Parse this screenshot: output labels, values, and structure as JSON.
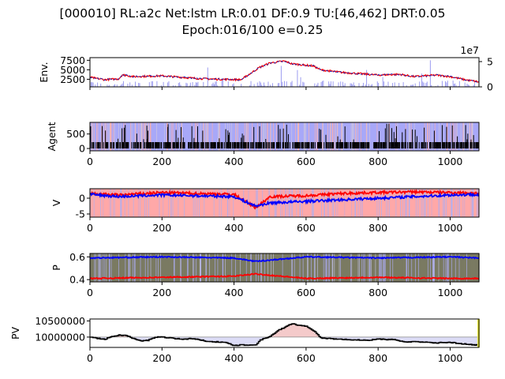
{
  "title_line1": "[000010] RL:a2c Net:lstm LR:0.01 DF:0.9 TU:[46,462] DRT:0.05",
  "title_line2": "Epoch:016/100 e=0.25",
  "chart_data": [
    {
      "type": "line",
      "ylabel": "Env.",
      "xlim": [
        0,
        1080
      ],
      "ylim": [
        500,
        8200
      ],
      "yticks": [
        2500,
        5000,
        7500
      ],
      "y2ticks": [
        "0",
        "5"
      ],
      "y2_offset": "1e7",
      "series": [
        {
          "color": "#ff0000",
          "x": [
            0,
            40,
            80,
            90,
            120,
            200,
            300,
            360,
            420,
            470,
            500,
            540,
            560,
            620,
            640,
            700,
            760,
            800,
            860,
            900,
            960,
            1000,
            1040,
            1080
          ],
          "values": [
            3000,
            2400,
            2600,
            3700,
            3200,
            3400,
            2700,
            2500,
            2400,
            5600,
            6800,
            7300,
            6600,
            6000,
            5000,
            4300,
            3900,
            3600,
            3800,
            3200,
            3600,
            3200,
            2400,
            1800
          ]
        }
      ]
    },
    {
      "type": "bar",
      "ylabel": "Agent",
      "xlim": [
        0,
        1080
      ],
      "ylim": [
        -80,
        900
      ],
      "yticks": [
        0,
        500
      ],
      "xticks": [
        0,
        200,
        400,
        600,
        800,
        1000
      ]
    },
    {
      "type": "line",
      "ylabel": "V",
      "xlim": [
        0,
        1080
      ],
      "ylim": [
        -6,
        3
      ],
      "yticks": [
        0,
        -5
      ],
      "xticks": [
        0,
        200,
        400,
        600,
        800,
        1000
      ],
      "series": [
        {
          "color": "#ff0000",
          "x": [
            0,
            80,
            200,
            400,
            460,
            500,
            600,
            700,
            800,
            900,
            1000,
            1080
          ],
          "values": [
            1.5,
            1.0,
            1.8,
            1.2,
            -3.0,
            0.5,
            0.8,
            1.5,
            1.8,
            2.0,
            1.8,
            1.6
          ]
        },
        {
          "color": "#0000ff",
          "x": [
            0,
            80,
            200,
            400,
            460,
            500,
            600,
            700,
            800,
            900,
            1000,
            1080
          ],
          "values": [
            1.2,
            0.5,
            1.0,
            0.5,
            -2.5,
            -1.5,
            -1.0,
            -0.5,
            0.0,
            0.5,
            1.0,
            1.2
          ]
        }
      ]
    },
    {
      "type": "line",
      "ylabel": "P",
      "xlim": [
        0,
        1080
      ],
      "ylim": [
        0.38,
        0.63
      ],
      "yticks": [
        0.6,
        0.4
      ],
      "xticks": [
        0,
        200,
        400,
        600,
        800,
        1000
      ],
      "series": [
        {
          "color": "#0000ff",
          "x": [
            0,
            200,
            400,
            460,
            600,
            800,
            1000,
            1080
          ],
          "values": [
            0.59,
            0.6,
            0.59,
            0.56,
            0.6,
            0.59,
            0.6,
            0.59
          ]
        },
        {
          "color": "#ff0000",
          "x": [
            0,
            200,
            400,
            460,
            600,
            800,
            1000,
            1080
          ],
          "values": [
            0.41,
            0.42,
            0.43,
            0.45,
            0.41,
            0.42,
            0.41,
            0.41
          ]
        }
      ]
    },
    {
      "type": "line",
      "ylabel": "PV",
      "xlim": [
        0,
        1080
      ],
      "ylim": [
        9680000,
        10560000
      ],
      "yticks": [
        10000000,
        10500000
      ],
      "baseline": 10000000,
      "xticks": [
        0,
        200,
        400,
        600,
        800,
        1000
      ],
      "series": [
        {
          "color": "#000000",
          "x": [
            0,
            20,
            40,
            60,
            80,
            100,
            120,
            140,
            160,
            180,
            200,
            220,
            240,
            260,
            280,
            300,
            320,
            340,
            360,
            380,
            400,
            420,
            440,
            460,
            470,
            480,
            500,
            520,
            540,
            560,
            580,
            600,
            620,
            640,
            660,
            680,
            700,
            720,
            740,
            760,
            780,
            800,
            820,
            840,
            860,
            880,
            900,
            920,
            940,
            960,
            980,
            1000,
            1020,
            1040,
            1060,
            1080
          ],
          "values": [
            10000000,
            9960000,
            9930000,
            10020000,
            10060000,
            10050000,
            9950000,
            9880000,
            9900000,
            10000000,
            10000000,
            9980000,
            9950000,
            9930000,
            9960000,
            9920000,
            9880000,
            9860000,
            9840000,
            9820000,
            9740000,
            9760000,
            9750000,
            9760000,
            9900000,
            9950000,
            10020000,
            10200000,
            10300000,
            10420000,
            10360000,
            10340000,
            10200000,
            9970000,
            9960000,
            9940000,
            9930000,
            9920000,
            9910000,
            9900000,
            9910000,
            9950000,
            9920000,
            9930000,
            9870000,
            9850000,
            9860000,
            9840000,
            9830000,
            9820000,
            9830000,
            9840000,
            9800000,
            9790000,
            9760000,
            9750000
          ]
        }
      ]
    }
  ]
}
